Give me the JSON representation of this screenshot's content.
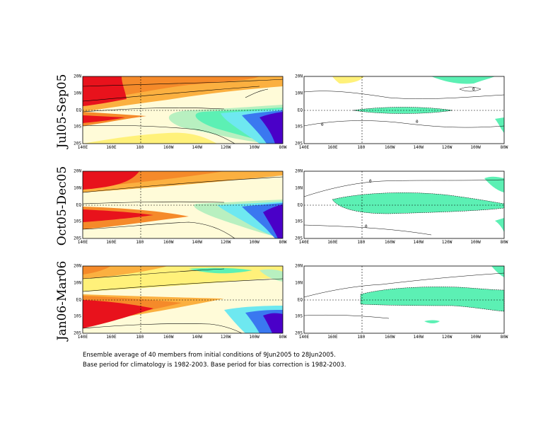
{
  "rows": [
    {
      "label": "Jul05-Sep05"
    },
    {
      "label": "Oct05-Dec05"
    },
    {
      "label": "Jan06-Mar06"
    }
  ],
  "axes": {
    "x_ticks": [
      "140E",
      "160E",
      "180",
      "160W",
      "140W",
      "120W",
      "100W",
      "80W"
    ],
    "y_ticks": [
      "20N",
      "10N",
      "EQ",
      "10S",
      "20S"
    ]
  },
  "contour_labels": {
    "row1_right": [
      "0",
      "0",
      "0"
    ],
    "row2_right": [
      "0",
      "0"
    ],
    "row3_right": []
  },
  "colors": {
    "red": "#e8121c",
    "orange_red": "#f04e1a",
    "orange": "#f58a2a",
    "light_orange": "#fbb040",
    "yellow": "#fff17a",
    "cream": "#fffbd8",
    "light_green": "#b8f0c0",
    "aquamarine": "#5cf0b4",
    "cyan": "#6ee8f0",
    "light_blue": "#7ac4f4",
    "blue": "#3a78f0",
    "dark_blue": "#3216d8",
    "indigo": "#4a00c8"
  },
  "caption": {
    "line1": "Ensemble average of 40 members from initial conditions of 9Jun2005 to 28Jun2005.",
    "line2": "Base period for climatology is 1982-2003. Base period for bias correction is 1982-2003."
  }
}
